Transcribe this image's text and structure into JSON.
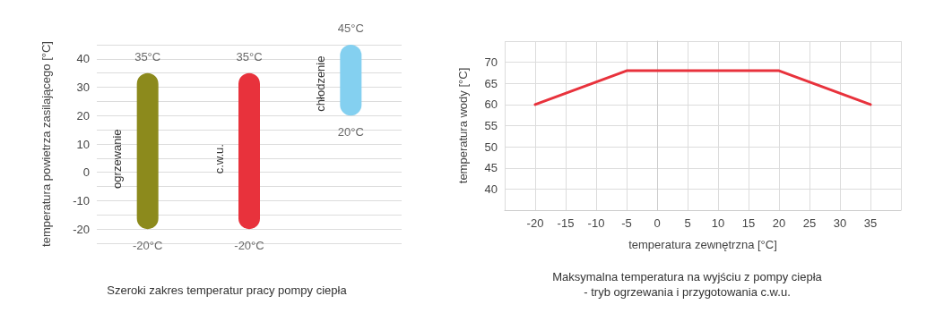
{
  "chart_data": [
    {
      "type": "bar",
      "title": "Szeroki zakres temperatur pracy pompy ciepła",
      "ylabel": "temperatura powietrza zasilającego [°C]",
      "categories": [
        "ogrzewanie",
        "c.w.u.",
        "chłodzenie"
      ],
      "base": [
        -20,
        -20,
        20
      ],
      "values": [
        55,
        55,
        25
      ],
      "colors": [
        "#8c8a1c",
        "#e8323c",
        "#84d0f0"
      ],
      "ylim": [
        -25,
        45
      ],
      "yticks": [
        {
          "value": -25,
          "label": null
        },
        -20,
        {
          "value": -15,
          "label": null
        },
        -10,
        {
          "value": -5,
          "label": null
        },
        0,
        {
          "value": 5,
          "label": null
        },
        10,
        {
          "value": 15,
          "label": null
        },
        20,
        {
          "value": 25,
          "label": null
        },
        30,
        {
          "value": 35,
          "label": null
        },
        40,
        {
          "value": 45,
          "label": null
        }
      ],
      "grid": "y",
      "tick_labels": "y",
      "annotations": [
        {
          "text": "35°C",
          "x": "ogrzewanie",
          "y": 35
        },
        {
          "text": "-20°C",
          "x": "ogrzewanie",
          "y": -20
        },
        {
          "text": "35°C",
          "x": "c.w.u.",
          "y": 35
        },
        {
          "text": "-20°C",
          "x": "c.w.u.",
          "y": -20
        },
        {
          "text": "45°C",
          "x": "chłodzenie",
          "y": 45
        },
        {
          "text": "20°C",
          "x": "chłodzenie",
          "y": 20
        }
      ]
    },
    {
      "type": "line",
      "title": "Maksymalna temperatura na wyjściu z pompy ciepła\n- tryb ogrzewania i przygotowania c.w.u.",
      "xlabel": "temperatura zewnętrzna [°C]",
      "ylabel": "temperatura wody [°C]",
      "x": [
        -20,
        -5,
        20,
        35
      ],
      "values": [
        60,
        68,
        68,
        60
      ],
      "color": "#e8323c",
      "marker": "none",
      "line_style": "solid",
      "xlim": [
        -25,
        40
      ],
      "xticks": [
        {
          "value": -25,
          "label": null
        },
        -20,
        -15,
        -10,
        -5,
        0,
        5,
        10,
        15,
        20,
        25,
        30,
        35,
        {
          "value": 40,
          "label": null
        }
      ],
      "ylim": [
        35,
        75
      ],
      "yticks": [
        {
          "value": 35,
          "label": null
        },
        40,
        45,
        50,
        55,
        60,
        65,
        70,
        {
          "value": 75,
          "label": null
        }
      ],
      "grid": true
    }
  ]
}
